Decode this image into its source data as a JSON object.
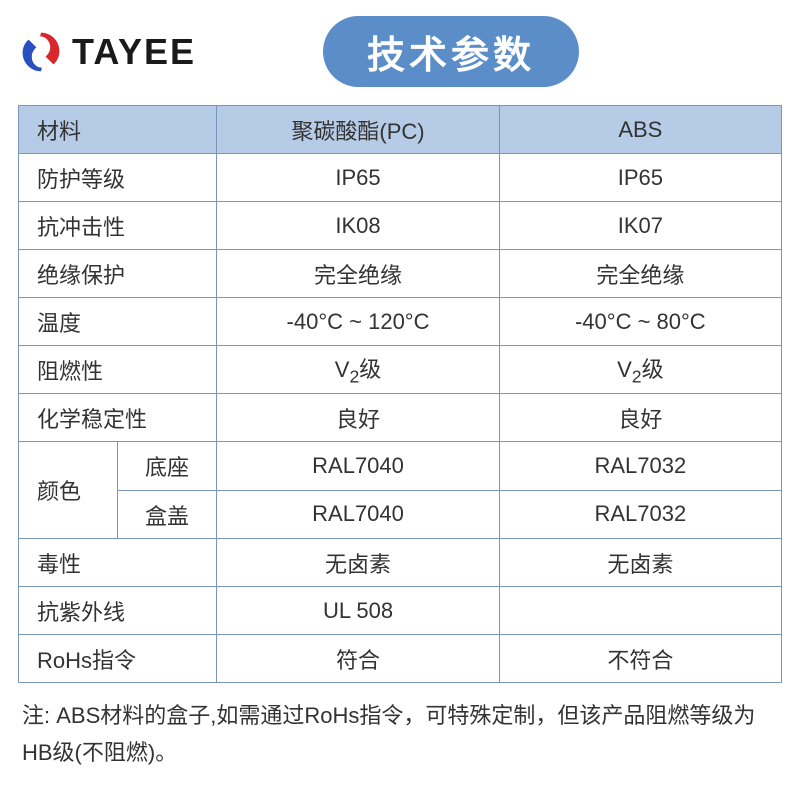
{
  "branding": {
    "logo_text": "TAYEE",
    "logo_red": "#d9272e",
    "logo_blue": "#2a4fbf"
  },
  "title": "技术参数",
  "colors": {
    "pill_bg": "#5b8ec8",
    "header_bg": "#b6cbe6",
    "border": "#7a96b8",
    "text": "#333333",
    "page_bg": "#ffffff"
  },
  "table": {
    "col_widths": [
      "26%",
      "37%",
      "37%"
    ],
    "header": {
      "label": "材料",
      "col1": "聚碳酸酯(PC)",
      "col2": "ABS"
    },
    "rows": [
      {
        "label": "防护等级",
        "col1": "IP65",
        "col2": "IP65"
      },
      {
        "label": "抗冲击性",
        "col1": "IK08",
        "col2": "IK07"
      },
      {
        "label": "绝缘保护",
        "col1": "完全绝缘",
        "col2": "完全绝缘"
      },
      {
        "label": "温度",
        "col1": "-40°C ~ 120°C",
        "col2": "-40°C ~ 80°C"
      },
      {
        "label": "阻燃性",
        "col1": "V2级",
        "col2": "V2级",
        "subscript_v2": true
      },
      {
        "label": "化学稳定性",
        "col1": "良好",
        "col2": "良好"
      }
    ],
    "color_group": {
      "label": "颜色",
      "subrows": [
        {
          "sublabel": "底座",
          "col1": "RAL7040",
          "col2": "RAL7032"
        },
        {
          "sublabel": "盒盖",
          "col1": "RAL7040",
          "col2": "RAL7032"
        }
      ]
    },
    "rows_after": [
      {
        "label": "毒性",
        "col1": "无卤素",
        "col2": "无卤素"
      },
      {
        "label": "抗紫外线",
        "col1": "UL 508",
        "col2": ""
      },
      {
        "label": "RoHs指令",
        "col1": "符合",
        "col2": "不符合"
      }
    ]
  },
  "footnote": "注: ABS材料的盒子,如需通过RoHs指令，可特殊定制，但该产品阻燃等级为HB级(不阻燃)。"
}
